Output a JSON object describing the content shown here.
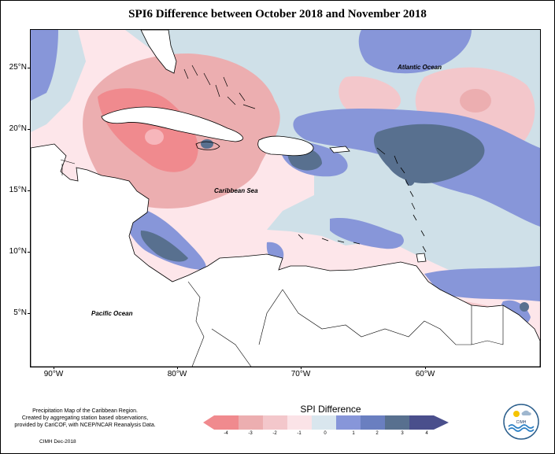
{
  "title": "SPI6 Difference between October 2018 and November 2018",
  "axes": {
    "y_ticks": [
      "25°N",
      "20°N",
      "15°N",
      "10°N",
      "5°N"
    ],
    "x_ticks": [
      "90°W",
      "80°W",
      "70°W",
      "60°W"
    ]
  },
  "labels": {
    "atlantic": "Atlantic Ocean",
    "caribbean": "Caribbean Sea",
    "pacific": "Pacific Ocean"
  },
  "footer": {
    "line1": "Precipitation Map of the Caribbean Region.",
    "line2": "Created by aggregating station based observations,",
    "line3": "provided by CariCOF, with NCEP/NCAR Reanalysis Data.",
    "credit": "CIMH Dec-2018"
  },
  "legend": {
    "title": "SPI Difference",
    "ticks": [
      "-4",
      "-3",
      "-2",
      "-1",
      "0",
      "1",
      "2",
      "3",
      "4"
    ],
    "colors": [
      "#f08a8e",
      "#ecaeb0",
      "#f3c7cb",
      "#fbe3e7",
      "#d9e6ee",
      "#8796d9",
      "#6a7fc0",
      "#58708f",
      "#4a4f8c"
    ]
  },
  "logo": {
    "text": "CIMH",
    "icon": "cimh-logo-icon"
  },
  "colors": {
    "land": "#ffffff",
    "neutral": "#fde6ea",
    "dry_strong": "#f08a8e",
    "dry": "#ecaeb0",
    "wet": "#8796d9",
    "wet_light": "#cfe0e8",
    "wet_strong": "#58708f"
  }
}
